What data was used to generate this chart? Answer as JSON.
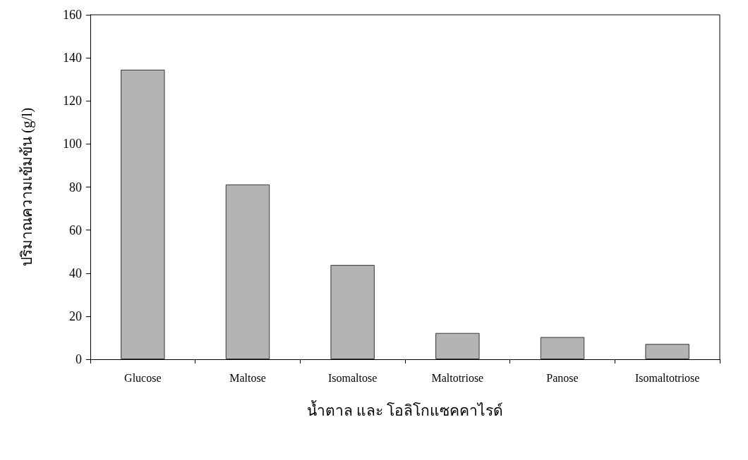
{
  "chart_data": {
    "type": "bar",
    "xlabel": "น้ำตาล และ โอลิโกแซคคาไรด์",
    "ylabel": "ปริมาณความเข้มข้น (g/l)",
    "categories": [
      "Glucose",
      "Maltose",
      "Isomaltose",
      "Maltotriose",
      "Panose",
      "Isomaltotriose"
    ],
    "values": [
      134.5,
      81.2,
      43.8,
      12.2,
      10.3,
      7.1
    ],
    "color": "#b4b4b4",
    "ylim": [
      0,
      160
    ],
    "yticks": [
      0,
      20,
      40,
      60,
      80,
      100,
      120,
      140,
      160
    ],
    "grid": false
  }
}
